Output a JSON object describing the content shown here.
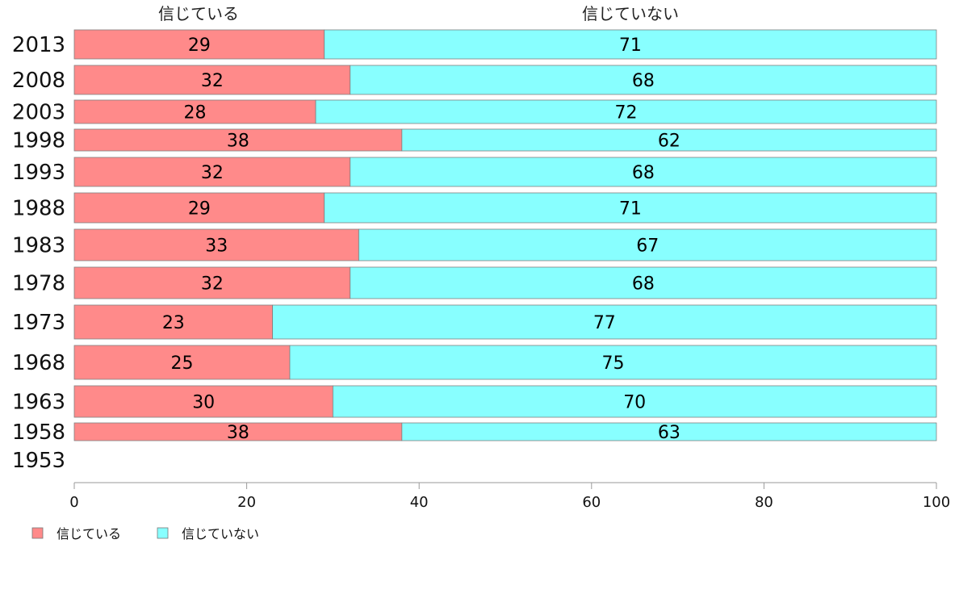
{
  "chart_data": {
    "type": "bar",
    "orientation": "horizontal",
    "stacked": true,
    "categories": [
      "2013",
      "2008",
      "2003",
      "1998",
      "1993",
      "1988",
      "1983",
      "1978",
      "1973",
      "1968",
      "1963",
      "1958",
      "1953"
    ],
    "series": [
      {
        "name": "信じている",
        "values": [
          29,
          32,
          28,
          38,
          32,
          29,
          33,
          32,
          23,
          25,
          30,
          38,
          null
        ],
        "color": "#ff8a8a"
      },
      {
        "name": "信じていない",
        "values": [
          71,
          68,
          72,
          62,
          68,
          71,
          67,
          68,
          77,
          75,
          70,
          63,
          null
        ],
        "color": "#88ffff"
      }
    ],
    "column_headers": [
      "信じている",
      "信じていない"
    ],
    "xlim": [
      0,
      100
    ],
    "xticks": [
      0,
      20,
      40,
      60,
      80,
      100
    ],
    "grid": false,
    "legend": {
      "position": "bottom-left",
      "entries": [
        "信じている",
        "信じていない"
      ]
    }
  }
}
